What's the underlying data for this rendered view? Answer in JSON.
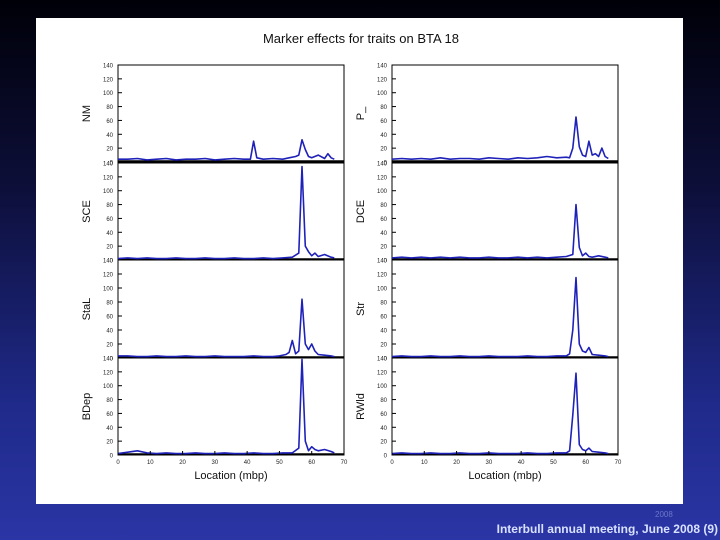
{
  "footer": {
    "year": "2008",
    "caption": "Interbull annual meeting, June 2008 (9)"
  },
  "colors": {
    "line": "#1f22b8",
    "axis": "#000000",
    "background": "#ffffff"
  },
  "chart_data": {
    "type": "line",
    "title": "Marker effects for traits on BTA 18",
    "grid": false,
    "panels_layout": "4 rows x 2 columns, shared x-axis per column",
    "xlim": [
      0,
      70
    ],
    "x_ticks": [
      "0",
      "10",
      "20",
      "30",
      "40",
      "50",
      "60",
      "70"
    ],
    "ylim": [
      0,
      140
    ],
    "y_ticks": [
      "0",
      "20",
      "40",
      "60",
      "80",
      "100",
      "120",
      "140"
    ],
    "columns": [
      {
        "xlabel": "Location (mbp)",
        "panels": [
          {
            "ylabel": "NM",
            "series": [
              {
                "x": [
                  0,
                  3,
                  6,
                  9,
                  12,
                  15,
                  18,
                  21,
                  24,
                  27,
                  30,
                  33,
                  36,
                  39,
                  41,
                  42,
                  43,
                  45,
                  48,
                  51,
                  53,
                  55,
                  56,
                  57,
                  58,
                  59,
                  60,
                  62,
                  64,
                  65,
                  66,
                  67
                ],
                "y": [
                  4,
                  4,
                  5,
                  3,
                  4,
                  5,
                  3,
                  4,
                  4,
                  5,
                  3,
                  4,
                  5,
                  4,
                  4,
                  30,
                  6,
                  4,
                  5,
                  4,
                  6,
                  8,
                  10,
                  32,
                  18,
                  8,
                  6,
                  10,
                  5,
                  12,
                  6,
                  4
                ]
              }
            ]
          },
          {
            "ylabel": "SCE",
            "series": [
              {
                "x": [
                  0,
                  3,
                  6,
                  9,
                  12,
                  15,
                  18,
                  21,
                  24,
                  27,
                  30,
                  33,
                  36,
                  39,
                  42,
                  45,
                  48,
                  51,
                  54,
                  56,
                  57,
                  58,
                  59,
                  60,
                  61,
                  62,
                  64,
                  66,
                  67
                ],
                "y": [
                  2,
                  3,
                  2,
                  3,
                  2,
                  2,
                  3,
                  2,
                  2,
                  3,
                  2,
                  2,
                  3,
                  2,
                  2,
                  3,
                  2,
                  3,
                  4,
                  10,
                  135,
                  20,
                  12,
                  6,
                  10,
                  5,
                  8,
                  4,
                  3
                ]
              }
            ]
          },
          {
            "ylabel": "StaL",
            "series": [
              {
                "x": [
                  0,
                  3,
                  6,
                  9,
                  12,
                  15,
                  18,
                  21,
                  24,
                  27,
                  30,
                  33,
                  36,
                  39,
                  42,
                  45,
                  48,
                  50,
                  52,
                  53,
                  54,
                  55,
                  56,
                  57,
                  58,
                  59,
                  60,
                  61,
                  62,
                  64,
                  66,
                  67
                ],
                "y": [
                  3,
                  3,
                  2,
                  2,
                  3,
                  2,
                  2,
                  3,
                  2,
                  2,
                  3,
                  2,
                  2,
                  2,
                  3,
                  2,
                  2,
                  3,
                  5,
                  8,
                  25,
                  6,
                  10,
                  84,
                  20,
                  12,
                  20,
                  10,
                  5,
                  4,
                  3,
                  2
                ]
              }
            ]
          },
          {
            "ylabel": "BDep",
            "series": [
              {
                "x": [
                  0,
                  3,
                  6,
                  9,
                  12,
                  15,
                  18,
                  21,
                  24,
                  27,
                  30,
                  33,
                  36,
                  39,
                  42,
                  45,
                  48,
                  51,
                  54,
                  56,
                  57,
                  58,
                  59,
                  60,
                  61,
                  62,
                  64,
                  66,
                  67
                ],
                "y": [
                  2,
                  4,
                  6,
                  3,
                  2,
                  3,
                  2,
                  2,
                  3,
                  2,
                  2,
                  3,
                  2,
                  2,
                  3,
                  2,
                  2,
                  3,
                  3,
                  10,
                  138,
                  20,
                  6,
                  12,
                  8,
                  6,
                  8,
                  5,
                  3
                ]
              }
            ]
          }
        ]
      },
      {
        "xlabel": "Location (mbp)",
        "panels": [
          {
            "ylabel": "P_",
            "series": [
              {
                "x": [
                  0,
                  3,
                  6,
                  9,
                  12,
                  15,
                  18,
                  21,
                  24,
                  27,
                  30,
                  33,
                  36,
                  39,
                  42,
                  45,
                  48,
                  51,
                  54,
                  55,
                  56,
                  57,
                  58,
                  59,
                  60,
                  61,
                  62,
                  63,
                  64,
                  65,
                  66,
                  67
                ],
                "y": [
                  4,
                  5,
                  4,
                  5,
                  4,
                  6,
                  4,
                  5,
                  5,
                  4,
                  6,
                  5,
                  4,
                  6,
                  5,
                  6,
                  8,
                  6,
                  7,
                  6,
                  20,
                  65,
                  22,
                  10,
                  8,
                  30,
                  10,
                  12,
                  8,
                  20,
                  8,
                  5
                ]
              }
            ]
          },
          {
            "ylabel": "DCE",
            "series": [
              {
                "x": [
                  0,
                  3,
                  6,
                  9,
                  12,
                  15,
                  18,
                  21,
                  24,
                  27,
                  30,
                  33,
                  36,
                  39,
                  42,
                  45,
                  48,
                  51,
                  54,
                  56,
                  57,
                  58,
                  59,
                  60,
                  61,
                  62,
                  64,
                  66,
                  67
                ],
                "y": [
                  3,
                  4,
                  3,
                  4,
                  3,
                  4,
                  3,
                  4,
                  3,
                  3,
                  4,
                  3,
                  3,
                  4,
                  3,
                  4,
                  3,
                  4,
                  5,
                  8,
                  80,
                  18,
                  6,
                  10,
                  5,
                  4,
                  6,
                  4,
                  3
                ]
              }
            ]
          },
          {
            "ylabel": "Str",
            "series": [
              {
                "x": [
                  0,
                  3,
                  6,
                  9,
                  12,
                  15,
                  18,
                  21,
                  24,
                  27,
                  30,
                  33,
                  36,
                  39,
                  42,
                  45,
                  48,
                  51,
                  54,
                  55,
                  56,
                  57,
                  58,
                  59,
                  60,
                  61,
                  62,
                  64,
                  66,
                  67
                ],
                "y": [
                  2,
                  3,
                  2,
                  2,
                  3,
                  2,
                  2,
                  3,
                  2,
                  2,
                  3,
                  2,
                  2,
                  2,
                  3,
                  2,
                  2,
                  3,
                  3,
                  6,
                  40,
                  115,
                  20,
                  10,
                  8,
                  15,
                  5,
                  4,
                  3,
                  2
                ]
              }
            ]
          },
          {
            "ylabel": "RWld",
            "series": [
              {
                "x": [
                  0,
                  3,
                  6,
                  9,
                  12,
                  15,
                  18,
                  21,
                  24,
                  27,
                  30,
                  33,
                  36,
                  39,
                  42,
                  45,
                  48,
                  51,
                  54,
                  55,
                  56,
                  57,
                  58,
                  59,
                  60,
                  61,
                  62,
                  64,
                  66,
                  67
                ],
                "y": [
                  2,
                  3,
                  2,
                  2,
                  3,
                  2,
                  2,
                  3,
                  2,
                  2,
                  3,
                  2,
                  2,
                  2,
                  3,
                  2,
                  2,
                  3,
                  3,
                  6,
                  58,
                  118,
                  15,
                  8,
                  6,
                  10,
                  5,
                  4,
                  3,
                  2
                ]
              }
            ]
          }
        ]
      }
    ]
  }
}
